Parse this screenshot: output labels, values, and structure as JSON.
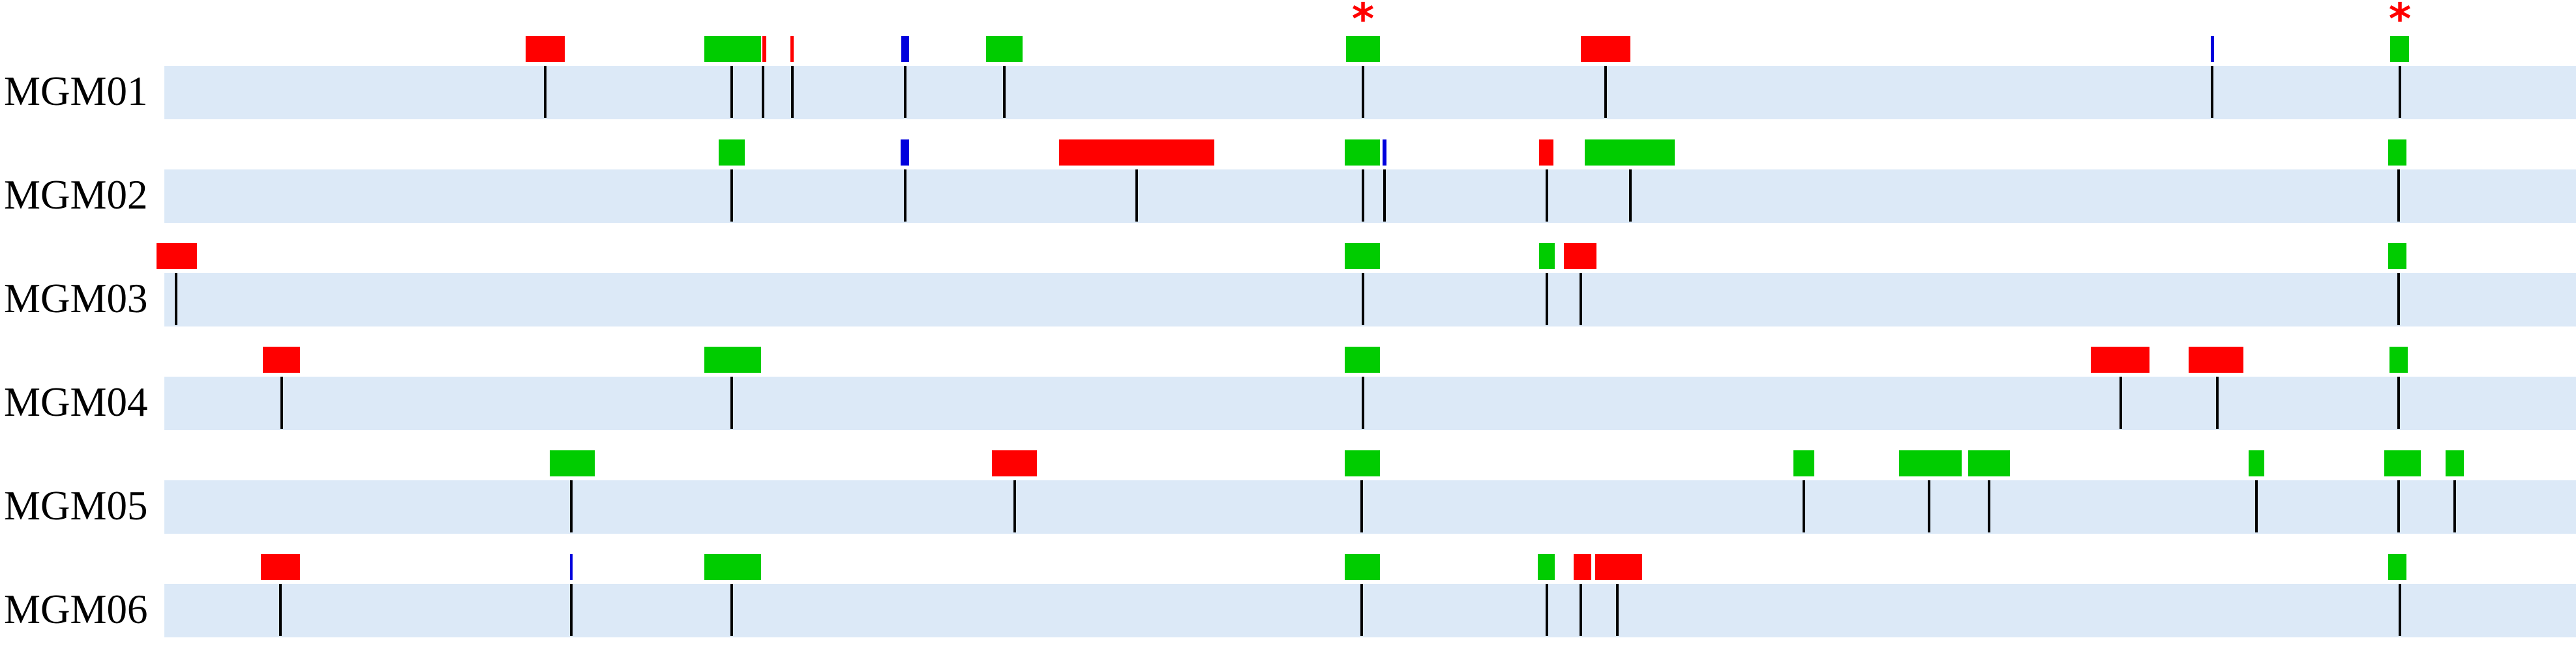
{
  "colors": {
    "track": "#dce9f7",
    "green": "#00cc00",
    "red": "#ff0000",
    "blue": "#0000dd",
    "tick": "#000000",
    "star": "#ff0000"
  },
  "axis": {
    "min": 0,
    "max": 3950
  },
  "star_symbol": "*",
  "star_positions": [
    2090,
    3680
  ],
  "rows": [
    {
      "label": "MGM01",
      "features": [
        {
          "start": 806,
          "end": 866,
          "color": "red"
        },
        {
          "start": 1080,
          "end": 1167,
          "color": "green"
        },
        {
          "start": 1169,
          "end": 1175,
          "color": "red"
        },
        {
          "start": 1212,
          "end": 1217,
          "color": "red"
        },
        {
          "start": 1382,
          "end": 1394,
          "color": "blue"
        },
        {
          "start": 1512,
          "end": 1568,
          "color": "green"
        },
        {
          "start": 2064,
          "end": 2116,
          "color": "green"
        },
        {
          "start": 2424,
          "end": 2500,
          "color": "red"
        },
        {
          "start": 3390,
          "end": 3395,
          "color": "blue"
        },
        {
          "start": 3665,
          "end": 3694,
          "color": "green"
        }
      ],
      "ticks": [
        836,
        1122,
        1170,
        1215,
        1388,
        1540,
        2090,
        2462,
        3392,
        3680
      ]
    },
    {
      "label": "MGM02",
      "features": [
        {
          "start": 1102,
          "end": 1142,
          "color": "green"
        },
        {
          "start": 1381,
          "end": 1394,
          "color": "blue"
        },
        {
          "start": 1624,
          "end": 1862,
          "color": "red"
        },
        {
          "start": 2062,
          "end": 2116,
          "color": "green"
        },
        {
          "start": 2120,
          "end": 2126,
          "color": "blue"
        },
        {
          "start": 2360,
          "end": 2382,
          "color": "red"
        },
        {
          "start": 2430,
          "end": 2568,
          "color": "green"
        },
        {
          "start": 3662,
          "end": 3690,
          "color": "green"
        }
      ],
      "ticks": [
        1122,
        1388,
        1743,
        2090,
        2123,
        2372,
        2500,
        3678
      ]
    },
    {
      "label": "MGM03",
      "features": [
        {
          "start": 240,
          "end": 302,
          "color": "red"
        },
        {
          "start": 2062,
          "end": 2116,
          "color": "green"
        },
        {
          "start": 2360,
          "end": 2384,
          "color": "green"
        },
        {
          "start": 2398,
          "end": 2448,
          "color": "red"
        },
        {
          "start": 3662,
          "end": 3690,
          "color": "green"
        }
      ],
      "ticks": [
        270,
        2090,
        2372,
        2424,
        3678
      ]
    },
    {
      "label": "MGM04",
      "features": [
        {
          "start": 403,
          "end": 460,
          "color": "red"
        },
        {
          "start": 1080,
          "end": 1167,
          "color": "green"
        },
        {
          "start": 2062,
          "end": 2116,
          "color": "green"
        },
        {
          "start": 3206,
          "end": 3296,
          "color": "red"
        },
        {
          "start": 3356,
          "end": 3440,
          "color": "red"
        },
        {
          "start": 3664,
          "end": 3692,
          "color": "green"
        }
      ],
      "ticks": [
        432,
        1122,
        2090,
        3252,
        3400,
        3678
      ]
    },
    {
      "label": "MGM05",
      "features": [
        {
          "start": 843,
          "end": 912,
          "color": "green"
        },
        {
          "start": 1521,
          "end": 1590,
          "color": "red"
        },
        {
          "start": 2062,
          "end": 2116,
          "color": "green"
        },
        {
          "start": 2750,
          "end": 2782,
          "color": "green"
        },
        {
          "start": 2912,
          "end": 3008,
          "color": "green"
        },
        {
          "start": 3018,
          "end": 3082,
          "color": "green"
        },
        {
          "start": 3448,
          "end": 3472,
          "color": "green"
        },
        {
          "start": 3656,
          "end": 3712,
          "color": "green"
        },
        {
          "start": 3750,
          "end": 3778,
          "color": "green"
        }
      ],
      "ticks": [
        876,
        1556,
        2088,
        2766,
        2958,
        3050,
        3460,
        3678,
        3764
      ]
    },
    {
      "label": "MGM06",
      "features": [
        {
          "start": 400,
          "end": 460,
          "color": "red"
        },
        {
          "start": 874,
          "end": 878,
          "color": "blue"
        },
        {
          "start": 1080,
          "end": 1167,
          "color": "green"
        },
        {
          "start": 2062,
          "end": 2116,
          "color": "green"
        },
        {
          "start": 2358,
          "end": 2384,
          "color": "green"
        },
        {
          "start": 2413,
          "end": 2440,
          "color": "red"
        },
        {
          "start": 2446,
          "end": 2518,
          "color": "red"
        },
        {
          "start": 3662,
          "end": 3690,
          "color": "green"
        }
      ],
      "ticks": [
        430,
        876,
        1122,
        2088,
        2372,
        2424,
        2480,
        3680
      ]
    }
  ]
}
